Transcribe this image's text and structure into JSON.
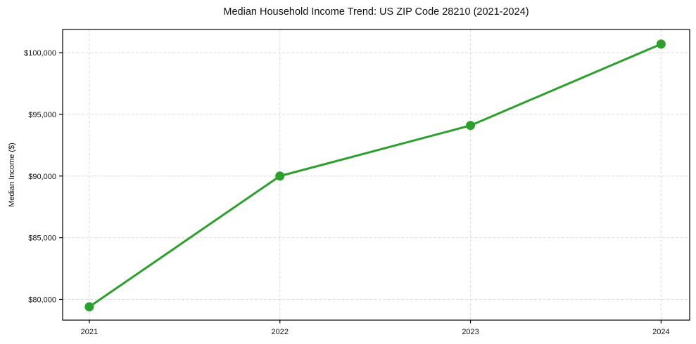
{
  "chart_data": {
    "type": "line",
    "title": "Median Household Income Trend: US ZIP Code 28210 (2021-2024)",
    "xlabel": "",
    "ylabel": "Median Income ($)",
    "x": [
      2021,
      2022,
      2023,
      2024
    ],
    "categories": [
      "2021",
      "2022",
      "2023",
      "2024"
    ],
    "series": [
      {
        "name": "median-income",
        "values": [
          79400,
          90000,
          94100,
          100700
        ]
      }
    ],
    "xlim": [
      2020.86,
      2024.15
    ],
    "ylim": [
      78320,
      101880
    ],
    "xticks": [
      {
        "value": 2021,
        "label": "2021"
      },
      {
        "value": 2022,
        "label": "2022"
      },
      {
        "value": 2023,
        "label": "2023"
      },
      {
        "value": 2024,
        "label": "2024"
      }
    ],
    "yticks": [
      {
        "value": 80000,
        "label": "$80,000"
      },
      {
        "value": 85000,
        "label": "$85,000"
      },
      {
        "value": 90000,
        "label": "$90,000"
      },
      {
        "value": 95000,
        "label": "$95,000"
      },
      {
        "value": 100000,
        "label": "$100,000"
      }
    ],
    "grid": true,
    "grid_style": "dashed",
    "legend": "none",
    "marker": "circle",
    "marker_size": 6.5,
    "line_width": 3,
    "colors": {
      "line": "#2ca02c",
      "marker": "#2ca02c",
      "grid": "#dcdcdc",
      "spine": "#000000",
      "text": "#111111",
      "background": "#ffffff"
    }
  }
}
